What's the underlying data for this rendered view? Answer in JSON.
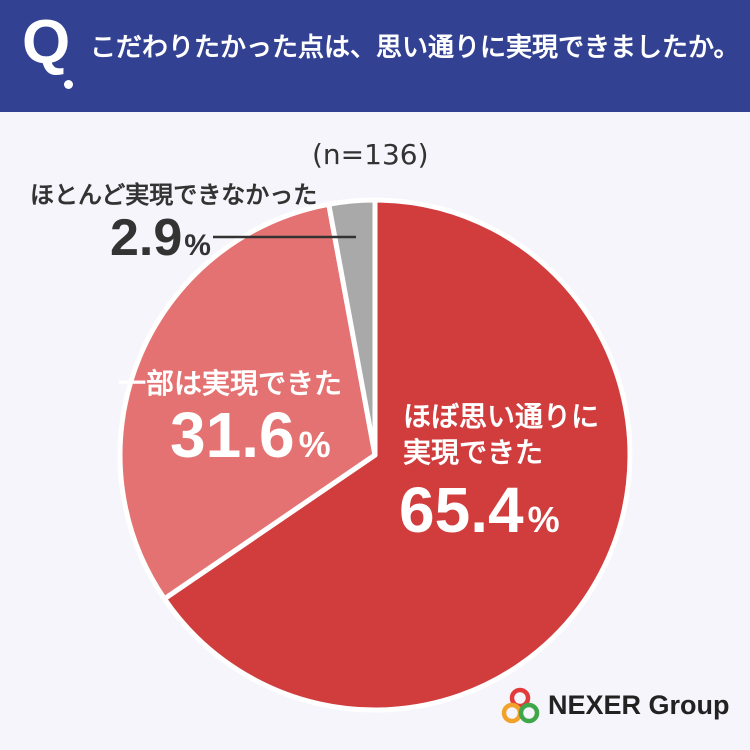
{
  "header": {
    "q": "Q",
    "question": "こだわりたかった点は、思い通りに実現できましたか。"
  },
  "chart_data": {
    "type": "pie",
    "n_label": "(n=136)",
    "slices": [
      {
        "label_lines": [
          "ほぼ思い通りに",
          "実現できた"
        ],
        "value": 65.4,
        "value_text": "65.4",
        "unit": "%",
        "color": "#d13c3d"
      },
      {
        "label_lines": [
          "一部は実現できた"
        ],
        "value": 31.6,
        "value_text": "31.6",
        "unit": "%",
        "color": "#e57272"
      },
      {
        "label_lines": [
          "ほとんど実現できなかった"
        ],
        "value": 2.9,
        "value_text": "2.9",
        "unit": "%",
        "color": "#a9a9a9"
      }
    ]
  },
  "logo": {
    "text": "NEXER Group",
    "colors": [
      "#e33b3b",
      "#f1a22a",
      "#3fa64a"
    ]
  }
}
